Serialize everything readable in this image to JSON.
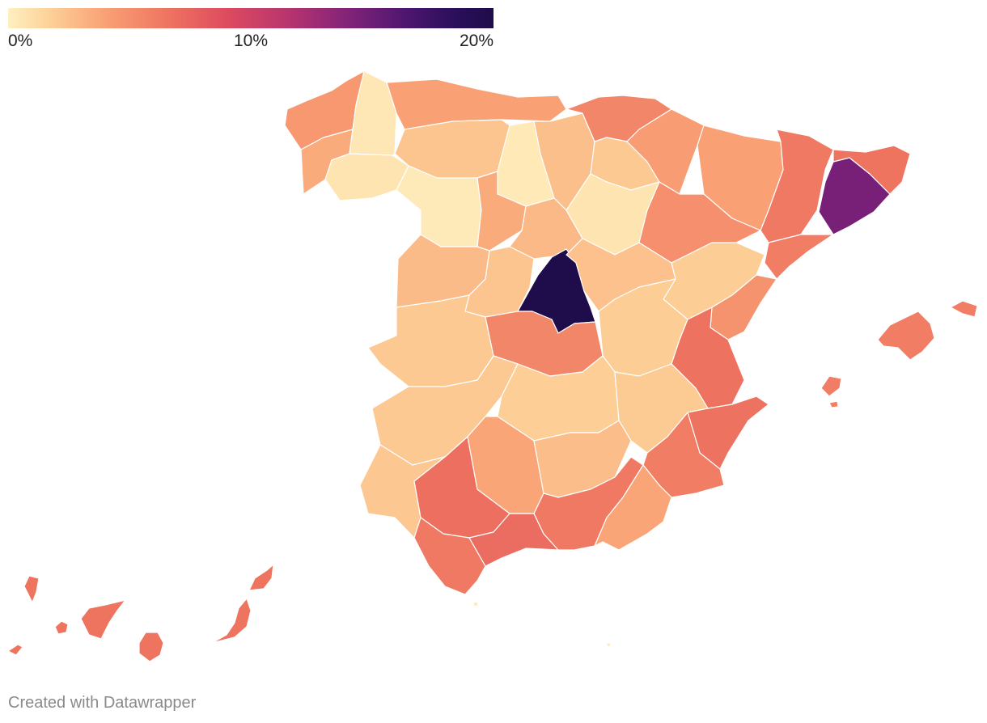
{
  "legend": {
    "min_label": "0%",
    "mid_label": "10%",
    "max_label": "20%",
    "range": [
      0,
      20
    ],
    "colors": [
      "#fef0c0",
      "#fdd39a",
      "#f9a175",
      "#ee7460",
      "#de4b5f",
      "#b6346f",
      "#822379",
      "#4e166f",
      "#1f0c4a"
    ]
  },
  "map": {
    "regions": [
      {
        "id": "galicia-north",
        "value": 5.5
      },
      {
        "id": "galicia-west",
        "value": 4.5
      },
      {
        "id": "galicia-south",
        "value": 1.0
      },
      {
        "id": "galicia-east",
        "value": 0.8
      },
      {
        "id": "cantabrian-coast",
        "value": 5.0
      },
      {
        "id": "north-central-1",
        "value": 3.2
      },
      {
        "id": "north-central-2",
        "value": 0.6
      },
      {
        "id": "north-central-3",
        "value": 3.5
      },
      {
        "id": "basque-1",
        "value": 6.5
      },
      {
        "id": "basque-2",
        "value": 3.0
      },
      {
        "id": "navarra",
        "value": 5.2
      },
      {
        "id": "aragon-north",
        "value": 5.0
      },
      {
        "id": "catalonia-lleida",
        "value": 7.2
      },
      {
        "id": "catalonia-barcelona",
        "value": 15.5
      },
      {
        "id": "catalonia-girona",
        "value": 7.5
      },
      {
        "id": "castile-west-1",
        "value": 0.5
      },
      {
        "id": "castile-central-1",
        "value": 4.5
      },
      {
        "id": "castile-central-2",
        "value": 3.8
      },
      {
        "id": "castile-east",
        "value": 1.0
      },
      {
        "id": "aragon-central",
        "value": 6.0
      },
      {
        "id": "catalonia-tarragona",
        "value": 7.0
      },
      {
        "id": "castile-west-2",
        "value": 3.7
      },
      {
        "id": "castile-central-3",
        "value": 3.2
      },
      {
        "id": "madrid",
        "value": 20.0
      },
      {
        "id": "castile-central-4",
        "value": 3.4
      },
      {
        "id": "aragon-south",
        "value": 2.8
      },
      {
        "id": "valencia-north",
        "value": 5.8
      },
      {
        "id": "extremadura-north",
        "value": 3.0
      },
      {
        "id": "toledo",
        "value": 6.5
      },
      {
        "id": "cuenca",
        "value": 2.8
      },
      {
        "id": "valencia-central",
        "value": 7.6
      },
      {
        "id": "extremadura-south",
        "value": 3.0
      },
      {
        "id": "ciudad-real",
        "value": 2.7
      },
      {
        "id": "albacete",
        "value": 2.9
      },
      {
        "id": "alicante",
        "value": 7.6
      },
      {
        "id": "huelva",
        "value": 3.1
      },
      {
        "id": "sevilla",
        "value": 7.8
      },
      {
        "id": "cordoba",
        "value": 4.8
      },
      {
        "id": "jaen",
        "value": 3.6
      },
      {
        "id": "murcia",
        "value": 7.0
      },
      {
        "id": "cadiz",
        "value": 7.2
      },
      {
        "id": "malaga",
        "value": 8.0
      },
      {
        "id": "granada",
        "value": 7.2
      },
      {
        "id": "almeria",
        "value": 4.8
      },
      {
        "id": "mallorca",
        "value": 7.0
      },
      {
        "id": "menorca",
        "value": 7.0
      },
      {
        "id": "ibiza",
        "value": 7.0
      },
      {
        "id": "la-palma",
        "value": 7.5
      },
      {
        "id": "la-gomera",
        "value": 7.5
      },
      {
        "id": "tenerife",
        "value": 7.5
      },
      {
        "id": "el-hierro",
        "value": 7.5
      },
      {
        "id": "gran-canaria",
        "value": 7.5
      },
      {
        "id": "fuerteventura",
        "value": 7.5
      },
      {
        "id": "lanzarote",
        "value": 7.5
      },
      {
        "id": "ceuta",
        "value": 0.5
      },
      {
        "id": "melilla",
        "value": 0.5
      }
    ]
  },
  "footer": {
    "credit": "Created with Datawrapper"
  }
}
